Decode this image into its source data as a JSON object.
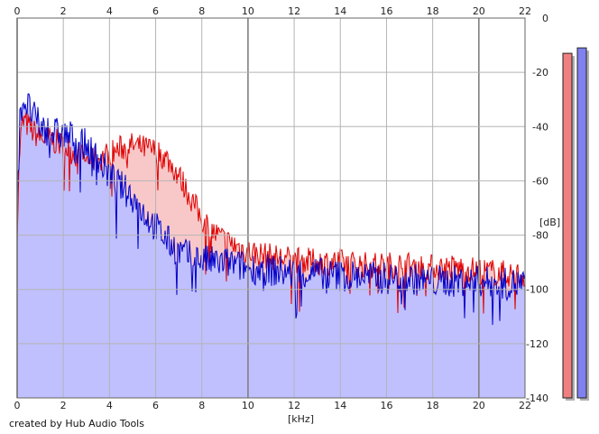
{
  "footer": {
    "credit": "created by Hub Audio Tools"
  },
  "chart_data": {
    "type": "area",
    "xlabel": "[kHz]",
    "ylabel": "[dB]",
    "xlim": [
      0,
      22
    ],
    "ylim": [
      -140,
      0
    ],
    "x_ticks": [
      0,
      2,
      4,
      6,
      8,
      10,
      12,
      14,
      16,
      18,
      20,
      22
    ],
    "y_ticks": [
      0,
      -20,
      -40,
      -60,
      -80,
      -100,
      -120,
      -140
    ],
    "grid": true,
    "colors": {
      "red_line": "#e00000",
      "red_fill": "#f8c8c8",
      "blue_line": "#0000c8",
      "blue_fill": "#c0c0ff",
      "grid": "#b4b4b4",
      "grid_major": "#808080"
    },
    "series": [
      {
        "color": "red",
        "x": [
          0.0,
          0.1,
          0.2,
          0.3,
          0.5,
          0.7,
          1.0,
          1.5,
          2.0,
          2.5,
          3.0,
          3.5,
          4.0,
          4.5,
          5.0,
          5.5,
          6.0,
          6.5,
          7.0,
          7.5,
          8.0,
          8.5,
          9.0,
          9.5,
          10.0,
          11.0,
          12.0,
          13.0,
          14.0,
          15.0,
          16.0,
          17.0,
          18.0,
          19.0,
          20.0,
          21.0,
          22.0
        ],
        "values": [
          -78,
          -50,
          -40,
          -38,
          -40,
          -42,
          -44,
          -45,
          -47,
          -50,
          -52,
          -52,
          -50,
          -48,
          -47,
          -48,
          -49,
          -52,
          -58,
          -66,
          -74,
          -79,
          -82,
          -84,
          -86,
          -88,
          -89,
          -90,
          -90,
          -91,
          -91,
          -91,
          -92,
          -92,
          -93,
          -94,
          -95
        ]
      },
      {
        "color": "blue",
        "x": [
          0.0,
          0.1,
          0.2,
          0.3,
          0.5,
          0.7,
          1.0,
          1.5,
          2.0,
          2.5,
          3.0,
          3.5,
          4.0,
          4.5,
          5.0,
          5.5,
          6.0,
          6.5,
          7.0,
          7.5,
          8.0,
          8.5,
          9.0,
          9.5,
          10.0,
          11.0,
          12.0,
          13.0,
          14.0,
          15.0,
          16.0,
          17.0,
          18.0,
          19.0,
          20.0,
          21.0,
          22.0
        ],
        "values": [
          -68,
          -40,
          -32,
          -30,
          -33,
          -36,
          -40,
          -42,
          -43,
          -44,
          -47,
          -52,
          -58,
          -62,
          -66,
          -72,
          -77,
          -82,
          -86,
          -88,
          -89,
          -90,
          -90,
          -91,
          -92,
          -93,
          -94,
          -94,
          -95,
          -95,
          -96,
          -96,
          -97,
          -97,
          -97,
          -98,
          -98
        ]
      }
    ],
    "level_meters": [
      {
        "color": "red",
        "level_db": -13
      },
      {
        "color": "blue",
        "level_db": -11
      }
    ]
  }
}
